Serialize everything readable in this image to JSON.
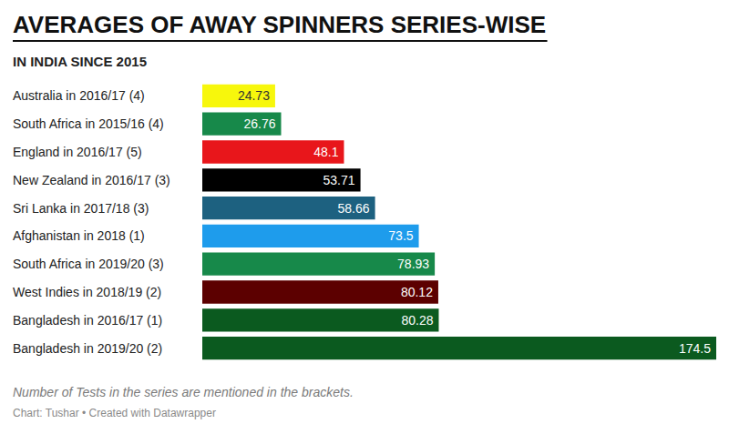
{
  "chart_data": {
    "type": "bar",
    "orientation": "horizontal",
    "title": "AVERAGES OF AWAY SPINNERS SERIES-WISE",
    "subtitle": "IN INDIA SINCE 2015",
    "annotations": [
      "Number of Tests in the series are mentioned in the brackets.",
      "Chart: Tushar • Created with Datawrapper"
    ],
    "categories": [
      "Australia in 2016/17 (4)",
      "South Africa in 2015/16 (4)",
      "England in 2016/17 (5)",
      "New Zealand in 2016/17 (3)",
      "Sri Lanka in 2017/18 (3)",
      "Afghanistan in 2018 (1)",
      "South Africa in 2019/20 (3)",
      "West Indies in 2018/19 (2)",
      "Bangladesh in 2016/17 (1)",
      "Bangladesh in 2019/20 (2)"
    ],
    "values": [
      24.73,
      26.76,
      48.1,
      53.71,
      58.66,
      73.5,
      78.93,
      80.12,
      80.28,
      174.5
    ],
    "colors": [
      "#f7f70c",
      "#17894a",
      "#e8161b",
      "#000000",
      "#1d6180",
      "#1e9cec",
      "#17894a",
      "#5c0000",
      "#0b5a1f",
      "#0b5a1f"
    ],
    "xlim": [
      0,
      174.5
    ],
    "data_labels": true,
    "tick_labels": false,
    "grid": false
  }
}
